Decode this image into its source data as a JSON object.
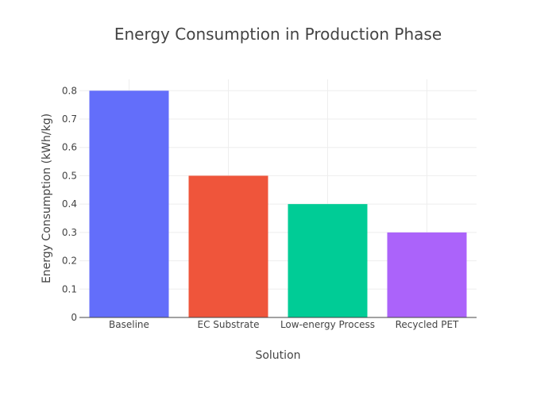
{
  "chart_data": {
    "type": "bar",
    "title": "Energy Consumption in Production Phase",
    "xlabel": "Solution",
    "ylabel": "Energy Consumption (kWh/kg)",
    "categories": [
      "Baseline",
      "EC Substrate",
      "Low-energy Process",
      "Recycled PET"
    ],
    "values": [
      0.8,
      0.5,
      0.4,
      0.3
    ],
    "colors": [
      "#636EFA",
      "#EF553B",
      "#00CC96",
      "#AB63FA"
    ],
    "ylim": [
      0,
      0.84
    ],
    "yticks": [
      0,
      0.1,
      0.2,
      0.3,
      0.4,
      0.5,
      0.6,
      0.7,
      0.8
    ],
    "grid": true,
    "legend": "none"
  }
}
